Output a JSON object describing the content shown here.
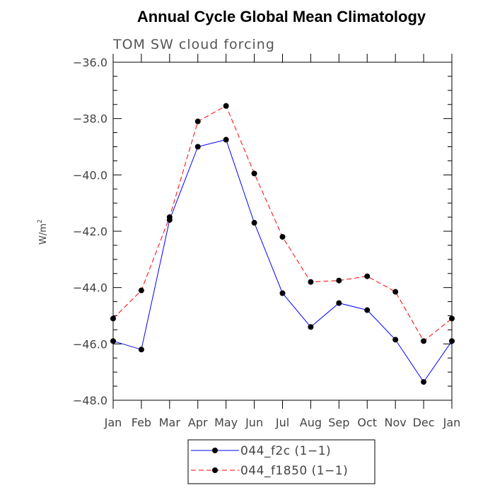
{
  "chart_data": {
    "type": "line",
    "title": "Annual Cycle Global Mean Climatology",
    "subtitle": "TOM SW cloud forcing",
    "xlabel": "",
    "ylabel": "W/m",
    "ylabel_superscript": "2",
    "categories": [
      "Jan",
      "Feb",
      "Mar",
      "Apr",
      "May",
      "Jun",
      "Jul",
      "Aug",
      "Sep",
      "Oct",
      "Nov",
      "Dec",
      "Jan"
    ],
    "ylim": [
      -48.0,
      -36.0
    ],
    "yticks": [
      -48.0,
      -46.0,
      -44.0,
      -42.0,
      -40.0,
      -38.0,
      -36.0
    ],
    "ytick_labels": [
      "−48.0",
      "−46.0",
      "−44.0",
      "−42.0",
      "−40.0",
      "−38.0",
      "−36.0"
    ],
    "grid": false,
    "legend_position": "bottom-center",
    "series": [
      {
        "name": "044_f2c (1−1)",
        "color": "#0000ff",
        "dash": "solid",
        "values": [
          -45.9,
          -46.2,
          -41.6,
          -39.0,
          -38.75,
          -41.7,
          -44.2,
          -45.4,
          -44.55,
          -44.8,
          -45.85,
          -47.35,
          -45.9
        ]
      },
      {
        "name": "044_f1850 (1−1)",
        "color": "#ff0000",
        "dash": "dashed",
        "values": [
          -45.1,
          -44.1,
          -41.5,
          -38.1,
          -37.55,
          -39.95,
          -42.2,
          -43.8,
          -43.75,
          -43.6,
          -44.15,
          -45.9,
          -45.1
        ]
      }
    ]
  }
}
